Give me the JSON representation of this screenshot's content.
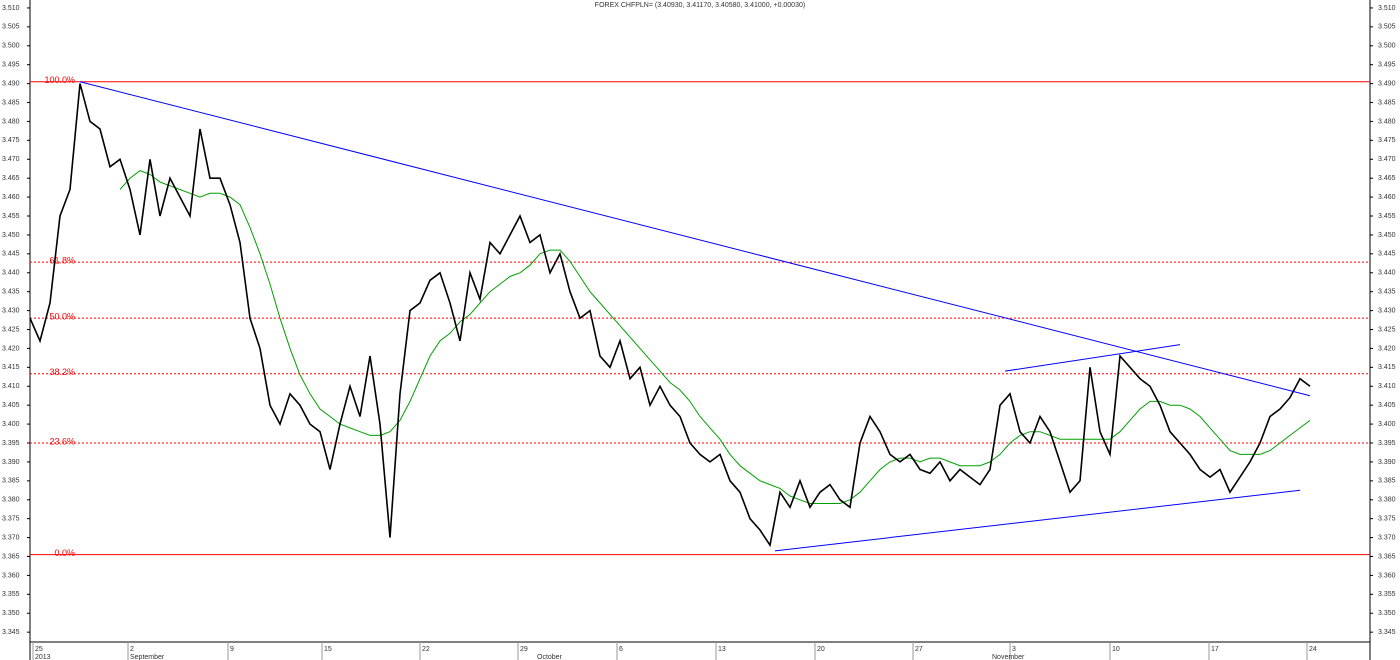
{
  "chart_data": {
    "type": "line",
    "title": "FOREX CHFPLN= (3.40930, 3.41170, 3.40580, 3.41000, +0.00030)",
    "xlim": [
      0,
      128
    ],
    "ylim": [
      3.3424,
      3.5121
    ],
    "yticks": [
      3.345,
      {
        "value": 3.35,
        "label": "3.350"
      },
      3.355,
      {
        "value": 3.36,
        "label": "3.360"
      },
      3.365,
      {
        "value": 3.37,
        "label": "3.370"
      },
      3.375,
      {
        "value": 3.38,
        "label": "3.380"
      },
      3.385,
      {
        "value": 3.39,
        "label": "3.390"
      },
      3.395,
      {
        "value": 3.4,
        "label": "3.400"
      },
      3.405,
      {
        "value": 3.41,
        "label": "3.410"
      },
      3.415,
      {
        "value": 3.42,
        "label": "3.420"
      },
      3.425,
      {
        "value": 3.43,
        "label": "3.430"
      },
      3.435,
      {
        "value": 3.44,
        "label": "3.440"
      },
      3.445,
      {
        "value": 3.45,
        "label": "3.450"
      },
      3.455,
      {
        "value": 3.46,
        "label": "3.460"
      },
      3.465,
      {
        "value": 3.47,
        "label": "3.470"
      },
      3.475,
      {
        "value": 3.48,
        "label": "3.480"
      },
      3.485,
      {
        "value": 3.49,
        "label": "3.490"
      },
      3.495,
      {
        "value": 3.5,
        "label": "3.500"
      },
      3.505,
      {
        "value": 3.51,
        "label": "3.510"
      }
    ],
    "xticks": [
      {
        "value": 0.3,
        "label": "25"
      },
      {
        "value": 9.8,
        "label": "2"
      },
      {
        "value": 19.8,
        "label": "9"
      },
      {
        "value": 29.2,
        "label": "15"
      },
      {
        "value": 39,
        "label": "22"
      },
      {
        "value": 48.8,
        "label": "29"
      },
      {
        "value": 58.7,
        "label": "6"
      },
      {
        "value": 68.6,
        "label": "13"
      },
      {
        "value": 78.5,
        "label": "20"
      },
      {
        "value": 88.3,
        "label": "27"
      },
      {
        "value": 98,
        "label": "3"
      },
      {
        "value": 108,
        "label": "10"
      },
      {
        "value": 117.9,
        "label": "17"
      },
      {
        "value": 127.7,
        "label": "24"
      }
    ],
    "months": [
      {
        "value": 0.3,
        "label": "2013"
      },
      {
        "value": 9.8,
        "label": "September"
      },
      {
        "value": 50.5,
        "label": "October"
      },
      {
        "value": 96,
        "label": "November"
      }
    ],
    "series": [
      {
        "color": "#000000",
        "values": [
          3.428,
          3.422,
          3.432,
          3.455,
          3.462,
          3.49,
          3.48,
          3.478,
          3.468,
          3.47,
          3.462,
          3.45,
          3.47,
          3.455,
          3.465,
          3.46,
          3.455,
          3.478,
          3.465,
          3.465,
          3.458,
          3.448,
          3.428,
          3.42,
          3.405,
          3.4,
          3.408,
          3.405,
          3.4,
          3.398,
          3.388,
          3.4,
          3.41,
          3.402,
          3.418,
          3.4,
          3.37,
          3.408,
          3.43,
          3.432,
          3.438,
          3.44,
          3.432,
          3.422,
          3.44,
          3.433,
          3.448,
          3.445,
          3.45,
          3.455,
          3.448,
          3.45,
          3.44,
          3.445,
          3.435,
          3.428,
          3.43,
          3.418,
          3.415,
          3.422,
          3.412,
          3.415,
          3.405,
          3.41,
          3.405,
          3.402,
          3.395,
          3.392,
          3.39,
          3.392,
          3.385,
          3.382,
          3.375,
          3.372,
          3.368,
          3.382,
          3.378,
          3.385,
          3.378,
          3.382,
          3.384,
          3.38,
          3.378,
          3.395,
          3.402,
          3.398,
          3.392,
          3.39,
          3.392,
          3.388,
          3.387,
          3.39,
          3.385,
          3.388,
          3.386,
          3.384,
          3.388,
          3.405,
          3.408,
          3.398,
          3.395,
          3.402,
          3.398,
          3.39,
          3.382,
          3.385,
          3.415,
          3.398,
          3.392,
          3.418,
          3.415,
          3.412,
          3.41,
          3.405,
          3.398,
          3.395,
          3.392,
          3.388,
          3.386,
          3.388,
          3.382,
          3.386,
          3.39,
          3.395,
          3.402,
          3.404,
          3.407,
          3.412,
          3.41
        ]
      },
      {
        "color": "#00a000",
        "values": [
          null,
          null,
          null,
          null,
          null,
          null,
          null,
          null,
          null,
          3.462,
          3.465,
          3.467,
          3.466,
          3.464,
          3.463,
          3.462,
          3.461,
          3.46,
          3.461,
          3.461,
          3.46,
          3.458,
          3.452,
          3.445,
          3.437,
          3.428,
          3.42,
          3.413,
          3.408,
          3.404,
          3.402,
          3.4,
          3.399,
          3.398,
          3.397,
          3.397,
          3.398,
          3.401,
          3.406,
          3.412,
          3.418,
          3.422,
          3.424,
          3.427,
          3.429,
          3.432,
          3.435,
          3.437,
          3.439,
          3.44,
          3.442,
          3.445,
          3.446,
          3.446,
          3.443,
          3.439,
          3.435,
          3.432,
          3.429,
          3.426,
          3.423,
          3.42,
          3.417,
          3.414,
          3.411,
          3.409,
          3.406,
          3.402,
          3.399,
          3.396,
          3.392,
          3.389,
          3.387,
          3.385,
          3.384,
          3.383,
          3.381,
          3.38,
          3.379,
          3.379,
          3.379,
          3.379,
          3.38,
          3.382,
          3.385,
          3.388,
          3.39,
          3.391,
          3.391,
          3.39,
          3.391,
          3.391,
          3.39,
          3.389,
          3.389,
          3.389,
          3.39,
          3.392,
          3.395,
          3.397,
          3.398,
          3.398,
          3.397,
          3.396,
          3.396,
          3.396,
          3.396,
          3.396,
          3.396,
          3.398,
          3.401,
          3.404,
          3.406,
          3.406,
          3.405,
          3.405,
          3.404,
          3.402,
          3.399,
          3.396,
          3.393,
          3.392,
          3.392,
          3.392,
          3.393,
          3.395,
          3.397,
          3.399,
          3.401
        ]
      }
    ],
    "levels_color": "#ff0000",
    "levels": [
      {
        "label": "100.0%",
        "price": 3.4905
      },
      {
        "label": "61.8%",
        "price": 3.4428
      },
      {
        "label": "50.0%",
        "price": 3.428
      },
      {
        "label": "38.2%",
        "price": 3.4133
      },
      {
        "label": "23.6%",
        "price": 3.395
      },
      {
        "label": "0.0%",
        "price": 3.3655
      }
    ],
    "trendlines_color": "#0000ff",
    "trendlines": [
      {
        "from": [
          5,
          3.4905
        ],
        "to": [
          128,
          3.4075
        ]
      },
      {
        "from": [
          74.5,
          3.3665
        ],
        "to": [
          127,
          3.3825
        ]
      },
      {
        "from": [
          97.5,
          3.414
        ],
        "to": [
          115,
          3.421
        ]
      }
    ]
  }
}
